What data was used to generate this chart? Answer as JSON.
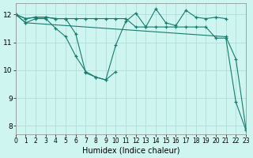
{
  "xlabel": "Humidex (Indice chaleur)",
  "background_color": "#cff5f0",
  "grid_color": "#b0ddd8",
  "line_color": "#1a7a6e",
  "xlim": [
    0,
    23
  ],
  "ylim": [
    7.7,
    12.4
  ],
  "xticks": [
    0,
    1,
    2,
    3,
    4,
    5,
    6,
    7,
    8,
    9,
    10,
    11,
    12,
    13,
    14,
    15,
    16,
    17,
    18,
    19,
    20,
    21,
    22,
    23
  ],
  "yticks": [
    8,
    9,
    10,
    11,
    12
  ],
  "series": [
    {
      "x": [
        0,
        1,
        2,
        3,
        4,
        5,
        6,
        7,
        8,
        9,
        10,
        11,
        12,
        13,
        14,
        15,
        16,
        17,
        18,
        19,
        20,
        21,
        22,
        23
      ],
      "y": [
        12.0,
        11.85,
        11.9,
        11.9,
        11.85,
        11.85,
        11.85,
        11.85,
        11.85,
        11.85,
        11.85,
        11.85,
        11.55,
        11.55,
        11.55,
        11.55,
        11.55,
        11.55,
        11.55,
        11.55,
        11.15,
        11.15,
        8.85,
        7.85
      ]
    },
    {
      "x": [
        0,
        1,
        2,
        3,
        4,
        5,
        6,
        7,
        8,
        9,
        10,
        11,
        12,
        13,
        14,
        15,
        16,
        17,
        18,
        19,
        20,
        21
      ],
      "y": [
        12.0,
        11.85,
        11.9,
        11.9,
        11.85,
        11.85,
        11.3,
        9.9,
        9.75,
        9.65,
        10.9,
        11.75,
        12.05,
        11.55,
        12.2,
        11.7,
        11.6,
        12.15,
        11.9,
        11.85,
        11.9,
        11.85
      ]
    },
    {
      "x": [
        0,
        1,
        2,
        3,
        4,
        5,
        6,
        7,
        8,
        9,
        10
      ],
      "y": [
        12.0,
        11.7,
        11.85,
        11.85,
        11.5,
        11.2,
        10.5,
        9.95,
        9.75,
        9.65,
        9.95
      ]
    },
    {
      "x": [
        0,
        1,
        21,
        22,
        23
      ],
      "y": [
        12.0,
        11.7,
        11.2,
        10.4,
        7.9
      ]
    }
  ]
}
